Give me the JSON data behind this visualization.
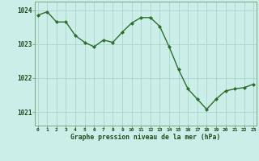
{
  "x": [
    0,
    1,
    2,
    3,
    4,
    5,
    6,
    7,
    8,
    9,
    10,
    11,
    12,
    13,
    14,
    15,
    16,
    17,
    18,
    19,
    20,
    21,
    22,
    23
  ],
  "y": [
    1023.85,
    1023.95,
    1023.65,
    1023.65,
    1023.25,
    1023.05,
    1022.92,
    1023.12,
    1023.05,
    1023.35,
    1023.62,
    1023.78,
    1023.78,
    1023.52,
    1022.92,
    1022.25,
    1021.68,
    1021.38,
    1021.08,
    1021.38,
    1021.62,
    1021.68,
    1021.72,
    1021.82
  ],
  "line_color": "#2d6e2d",
  "marker_color": "#2d6e2d",
  "bg_color": "#cceee8",
  "grid_color": "#aad4cc",
  "xlabel": "Graphe pression niveau de la mer (hPa)",
  "xlabel_color": "#1a4a1a",
  "tick_label_color": "#1a4a1a",
  "ylim": [
    1020.6,
    1024.25
  ],
  "yticks": [
    1021,
    1022,
    1023,
    1024
  ],
  "xticks": [
    0,
    1,
    2,
    3,
    4,
    5,
    6,
    7,
    8,
    9,
    10,
    11,
    12,
    13,
    14,
    15,
    16,
    17,
    18,
    19,
    20,
    21,
    22,
    23
  ]
}
